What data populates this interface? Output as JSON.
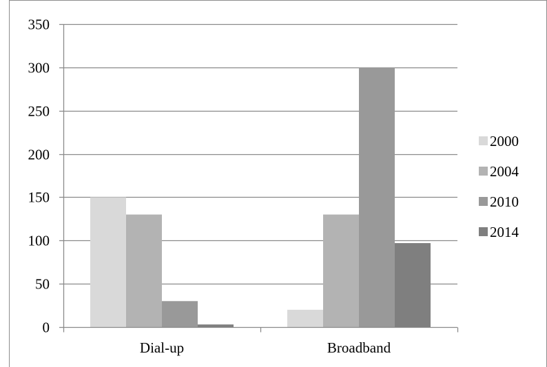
{
  "chart_data": {
    "type": "bar",
    "title": "",
    "xlabel": "",
    "ylabel": "",
    "categories": [
      "Dial-up",
      "Broadband"
    ],
    "series": [
      {
        "name": "2000",
        "values": [
          150,
          20
        ],
        "color": "#d9d9d9"
      },
      {
        "name": "2004",
        "values": [
          130,
          130
        ],
        "color": "#b3b3b3"
      },
      {
        "name": "2010",
        "values": [
          30,
          300
        ],
        "color": "#999999"
      },
      {
        "name": "2014",
        "values": [
          3,
          97
        ],
        "color": "#7f7f7f"
      }
    ],
    "ylim": [
      0,
      350
    ],
    "yticks": [
      "0",
      "50",
      "100",
      "150",
      "200",
      "250",
      "300",
      "350"
    ],
    "grid": true,
    "legend": "right"
  }
}
